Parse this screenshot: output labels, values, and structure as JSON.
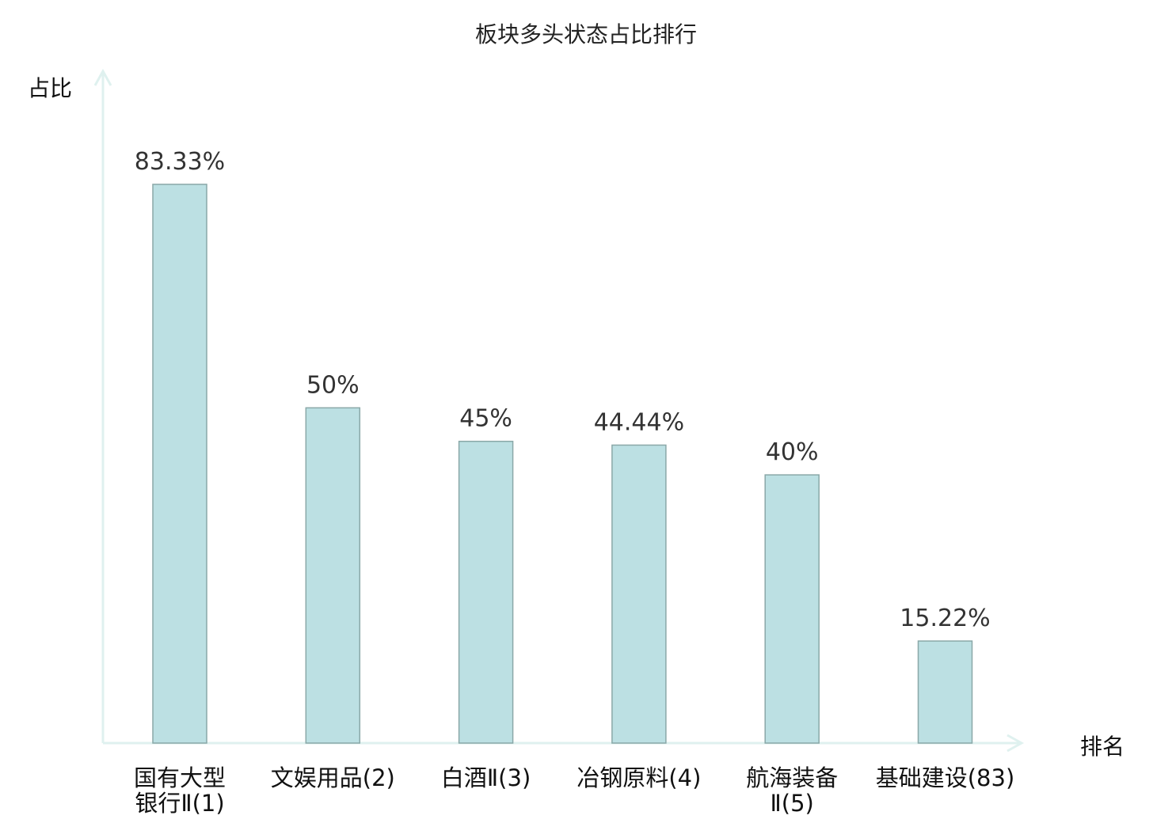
{
  "chart_data": {
    "type": "bar",
    "title": "板块多头状态占比排行",
    "xlabel": "排名",
    "ylabel": "占比",
    "categories": [
      [
        "国有大型",
        "银行Ⅱ(1)"
      ],
      [
        "文娱用品(2)"
      ],
      [
        "白酒Ⅱ(3)"
      ],
      [
        "冶钢原料(4)"
      ],
      [
        "航海装备",
        "Ⅱ(5)"
      ],
      [
        "基础建设(83)"
      ]
    ],
    "values": [
      83.33,
      50,
      45,
      44.44,
      40,
      15.22
    ],
    "value_labels": [
      "83.33%",
      "50%",
      "45%",
      "44.44%",
      "40%",
      "15.22%"
    ],
    "highlight_index": 5,
    "ylim": [
      0,
      100
    ],
    "grid": false,
    "colors": {
      "bar_fill": "#bce0e3",
      "bar_stroke": "#8aa8a8",
      "axis": "#dff1ef",
      "highlight": "#e0151b",
      "text": "#111111"
    }
  }
}
